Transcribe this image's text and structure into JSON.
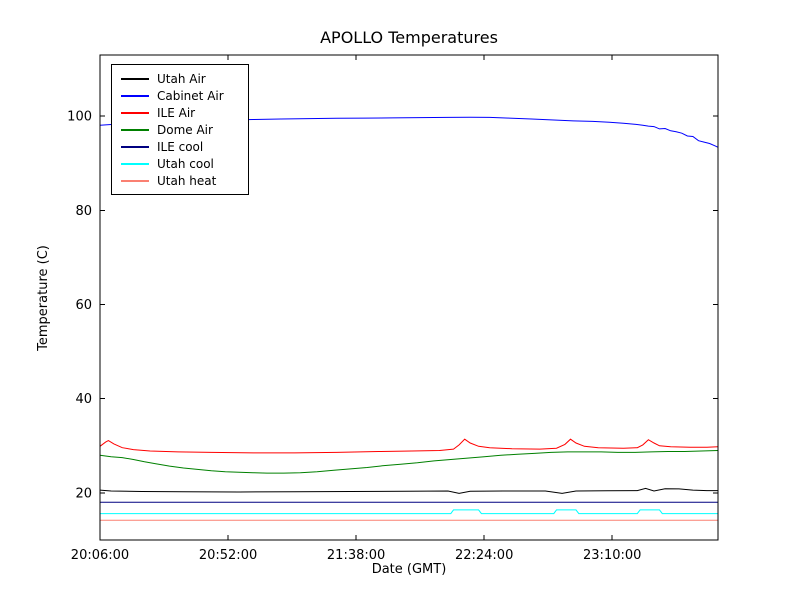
{
  "chart_data": {
    "type": "line",
    "title": "APOLLO Temperatures",
    "xlabel": "Date (GMT)",
    "ylabel": "Temperature (C)",
    "x_unit": "minutes since 20:06:00 GMT",
    "xlim": [
      0,
      222
    ],
    "ylim": [
      10,
      113
    ],
    "grid": false,
    "legend_position": "upper left",
    "x_ticks": [
      {
        "t": 0,
        "label": "20:06:00"
      },
      {
        "t": 46,
        "label": "20:52:00"
      },
      {
        "t": 92,
        "label": "21:38:00"
      },
      {
        "t": 138,
        "label": "22:24:00"
      },
      {
        "t": 184,
        "label": "23:10:00"
      }
    ],
    "y_ticks": [
      {
        "v": 20,
        "label": "20"
      },
      {
        "v": 40,
        "label": "40"
      },
      {
        "v": 60,
        "label": "60"
      },
      {
        "v": 80,
        "label": "80"
      },
      {
        "v": 100,
        "label": "100"
      }
    ],
    "series": [
      {
        "name": "Utah Air",
        "color": "#000000",
        "points": [
          [
            0,
            20.6
          ],
          [
            4,
            20.4
          ],
          [
            15,
            20.3
          ],
          [
            30,
            20.25
          ],
          [
            50,
            20.2
          ],
          [
            70,
            20.25
          ],
          [
            90,
            20.3
          ],
          [
            110,
            20.35
          ],
          [
            125,
            20.4
          ],
          [
            129,
            19.9
          ],
          [
            133,
            20.35
          ],
          [
            145,
            20.4
          ],
          [
            160,
            20.4
          ],
          [
            166,
            19.9
          ],
          [
            171,
            20.4
          ],
          [
            182,
            20.45
          ],
          [
            193,
            20.5
          ],
          [
            196,
            20.95
          ],
          [
            199,
            20.4
          ],
          [
            203,
            20.9
          ],
          [
            208,
            20.85
          ],
          [
            213,
            20.6
          ],
          [
            218,
            20.5
          ],
          [
            222,
            20.5
          ]
        ]
      },
      {
        "name": "Cabinet Air",
        "color": "#0000ff",
        "points": [
          [
            0,
            98.1
          ],
          [
            8,
            98.4
          ],
          [
            16,
            98.7
          ],
          [
            25,
            98.9
          ],
          [
            35,
            99.1
          ],
          [
            45,
            99.2
          ],
          [
            55,
            99.3
          ],
          [
            65,
            99.4
          ],
          [
            75,
            99.5
          ],
          [
            85,
            99.55
          ],
          [
            95,
            99.6
          ],
          [
            105,
            99.65
          ],
          [
            115,
            99.7
          ],
          [
            125,
            99.75
          ],
          [
            133,
            99.8
          ],
          [
            140,
            99.75
          ],
          [
            147,
            99.6
          ],
          [
            155,
            99.4
          ],
          [
            163,
            99.2
          ],
          [
            170,
            99.0
          ],
          [
            177,
            98.9
          ],
          [
            183,
            98.7
          ],
          [
            188,
            98.5
          ],
          [
            192,
            98.3
          ],
          [
            195,
            98.1
          ],
          [
            197,
            97.9
          ],
          [
            199,
            97.8
          ],
          [
            201,
            97.3
          ],
          [
            203,
            97.4
          ],
          [
            205,
            96.9
          ],
          [
            207,
            96.7
          ],
          [
            209,
            96.4
          ],
          [
            211,
            95.8
          ],
          [
            213,
            95.7
          ],
          [
            215,
            94.8
          ],
          [
            217,
            94.5
          ],
          [
            219,
            94.2
          ],
          [
            221,
            93.7
          ],
          [
            222,
            93.4
          ]
        ]
      },
      {
        "name": "ILE Air",
        "color": "#ff0000",
        "points": [
          [
            0,
            29.9
          ],
          [
            2,
            30.8
          ],
          [
            3,
            31.1
          ],
          [
            5,
            30.4
          ],
          [
            8,
            29.6
          ],
          [
            12,
            29.2
          ],
          [
            18,
            28.9
          ],
          [
            28,
            28.7
          ],
          [
            40,
            28.6
          ],
          [
            55,
            28.5
          ],
          [
            70,
            28.5
          ],
          [
            85,
            28.6
          ],
          [
            100,
            28.8
          ],
          [
            112,
            28.9
          ],
          [
            122,
            29.0
          ],
          [
            127,
            29.3
          ],
          [
            129,
            30.2
          ],
          [
            131,
            31.4
          ],
          [
            133,
            30.6
          ],
          [
            136,
            29.9
          ],
          [
            140,
            29.6
          ],
          [
            148,
            29.4
          ],
          [
            158,
            29.3
          ],
          [
            164,
            29.5
          ],
          [
            167,
            30.3
          ],
          [
            169,
            31.4
          ],
          [
            171,
            30.6
          ],
          [
            174,
            29.9
          ],
          [
            179,
            29.6
          ],
          [
            188,
            29.5
          ],
          [
            193,
            29.6
          ],
          [
            195,
            30.2
          ],
          [
            197,
            31.3
          ],
          [
            199,
            30.6
          ],
          [
            201,
            30.0
          ],
          [
            205,
            29.8
          ],
          [
            212,
            29.7
          ],
          [
            218,
            29.7
          ],
          [
            222,
            29.8
          ]
        ]
      },
      {
        "name": "Dome Air",
        "color": "#008000",
        "points": [
          [
            0,
            28.0
          ],
          [
            4,
            27.7
          ],
          [
            8,
            27.5
          ],
          [
            12,
            27.1
          ],
          [
            16,
            26.6
          ],
          [
            20,
            26.2
          ],
          [
            25,
            25.7
          ],
          [
            30,
            25.3
          ],
          [
            35,
            25.0
          ],
          [
            40,
            24.7
          ],
          [
            45,
            24.5
          ],
          [
            50,
            24.4
          ],
          [
            55,
            24.3
          ],
          [
            60,
            24.2
          ],
          [
            66,
            24.2
          ],
          [
            72,
            24.3
          ],
          [
            78,
            24.5
          ],
          [
            84,
            24.8
          ],
          [
            90,
            25.1
          ],
          [
            96,
            25.4
          ],
          [
            102,
            25.8
          ],
          [
            108,
            26.1
          ],
          [
            114,
            26.4
          ],
          [
            120,
            26.8
          ],
          [
            126,
            27.1
          ],
          [
            132,
            27.4
          ],
          [
            138,
            27.7
          ],
          [
            144,
            28.0
          ],
          [
            150,
            28.2
          ],
          [
            156,
            28.4
          ],
          [
            162,
            28.6
          ],
          [
            168,
            28.7
          ],
          [
            174,
            28.7
          ],
          [
            180,
            28.7
          ],
          [
            186,
            28.6
          ],
          [
            192,
            28.6
          ],
          [
            198,
            28.7
          ],
          [
            204,
            28.8
          ],
          [
            210,
            28.8
          ],
          [
            216,
            28.9
          ],
          [
            222,
            29.0
          ]
        ]
      },
      {
        "name": "ILE cool",
        "color": "#000080",
        "points": [
          [
            0,
            18.0
          ],
          [
            222,
            18.0
          ]
        ]
      },
      {
        "name": "Utah cool",
        "color": "#00ffff",
        "points": [
          [
            0,
            15.6
          ],
          [
            126,
            15.6
          ],
          [
            127,
            16.4
          ],
          [
            136,
            16.4
          ],
          [
            137,
            15.6
          ],
          [
            163,
            15.6
          ],
          [
            164,
            16.4
          ],
          [
            171,
            16.4
          ],
          [
            172,
            15.6
          ],
          [
            193,
            15.6
          ],
          [
            194,
            16.4
          ],
          [
            201,
            16.4
          ],
          [
            202,
            15.6
          ],
          [
            222,
            15.6
          ]
        ]
      },
      {
        "name": "Utah heat",
        "color": "#fa8072",
        "points": [
          [
            0,
            14.2
          ],
          [
            222,
            14.2
          ]
        ]
      }
    ]
  }
}
